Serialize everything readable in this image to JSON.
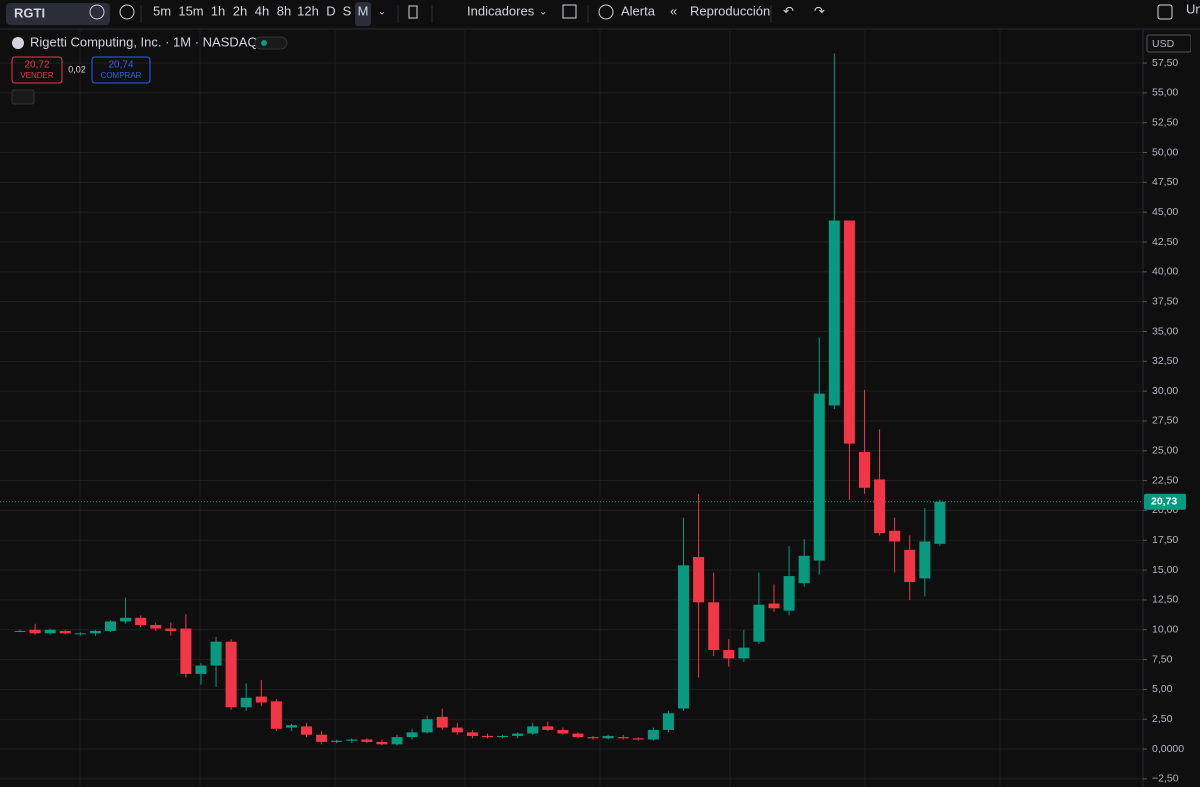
{
  "toolbar": {
    "symbol": "RGTI",
    "intervals": [
      "5m",
      "15m",
      "1h",
      "2h",
      "4h",
      "8h",
      "12h",
      "D",
      "S",
      "M"
    ],
    "indicators": "Indicadores",
    "alert": "Alerta",
    "replay": "Reproducción",
    "right_cut": "Un"
  },
  "legend": {
    "title": "Rigetti Computing, Inc. · 1M · NASDAQ",
    "sell_price": "20,72",
    "sell_label": "VENDER",
    "spread": "0,02",
    "buy_price": "20,74",
    "buy_label": "COMPRAR"
  },
  "currency": "USD",
  "chart_data": {
    "type": "candlestick",
    "up_color": "#089981",
    "down_color": "#f23645",
    "grid": true,
    "ylim": [
      -3.18,
      60.27
    ],
    "yticks": [
      {
        "value": -2.5,
        "label": "−2,50"
      },
      {
        "value": 0,
        "label": "0,0000"
      },
      {
        "value": 2.5,
        "label": "2,50"
      },
      {
        "value": 5,
        "label": "5,00"
      },
      {
        "value": 7.5,
        "label": "7,50"
      },
      {
        "value": 10,
        "label": "10,00"
      },
      {
        "value": 12.5,
        "label": "12,50"
      },
      {
        "value": 15,
        "label": "15,00"
      },
      {
        "value": 17.5,
        "label": "17,50"
      },
      {
        "value": 20,
        "label": "20,00"
      },
      {
        "value": 22.5,
        "label": "22,50"
      },
      {
        "value": 25,
        "label": "25,00"
      },
      {
        "value": 27.5,
        "label": "27,50"
      },
      {
        "value": 30,
        "label": "30,00"
      },
      {
        "value": 32.5,
        "label": "32,50"
      },
      {
        "value": 35,
        "label": "35,00"
      },
      {
        "value": 37.5,
        "label": "37,50"
      },
      {
        "value": 40,
        "label": "40,00"
      },
      {
        "value": 42.5,
        "label": "42,50"
      },
      {
        "value": 45,
        "label": "45,00"
      },
      {
        "value": 47.5,
        "label": "47,50"
      },
      {
        "value": 50,
        "label": "50,00"
      },
      {
        "value": 52.5,
        "label": "52,50"
      },
      {
        "value": 55,
        "label": "55,00"
      },
      {
        "value": 57.5,
        "label": "57,50"
      }
    ],
    "last_price": {
      "value": 20.73,
      "label": "20,73"
    },
    "open": [
      9.9,
      10,
      9.7,
      9.9,
      9.7,
      9.7,
      9.9,
      10.7,
      11,
      10.4,
      10.1,
      10.1,
      6.3,
      7,
      9,
      3.5,
      4.4,
      4,
      1.8,
      1.9,
      1.2,
      0.6,
      0.7,
      0.8,
      0.6,
      0.4,
      1,
      1.4,
      2.7,
      1.8,
      1.4,
      1.1,
      1,
      1.1,
      1.3,
      1.9,
      1.6,
      1.3,
      1,
      0.9,
      1,
      0.9,
      0.8,
      1.6,
      3.4,
      16.1,
      12.3,
      8.3,
      7.6,
      9,
      12.2,
      11.6,
      13.9,
      15.8,
      28.8,
      44.3,
      24.9,
      22.6,
      18.3,
      16.7,
      14.3,
      17.2
    ],
    "high": [
      10,
      10.5,
      10.1,
      10,
      9.8,
      10,
      10.8,
      12.7,
      11.2,
      10.6,
      10.6,
      11.3,
      7.2,
      9.4,
      9.2,
      5.5,
      5.8,
      4.2,
      2.1,
      2.2,
      1.5,
      0.8,
      0.9,
      0.9,
      0.8,
      1.2,
      1.7,
      2.8,
      3.4,
      2.2,
      1.6,
      1.3,
      1.2,
      1.4,
      2.2,
      2.3,
      1.8,
      1.4,
      1.1,
      1.2,
      1.2,
      1,
      1.8,
      3.2,
      19.4,
      21.4,
      14.8,
      9.2,
      10,
      14.8,
      13.8,
      17,
      17.6,
      34.5,
      58.3,
      44.3,
      30.1,
      26.8,
      19.4,
      17.9,
      20.2,
      20.9
    ],
    "low": [
      9.8,
      9.6,
      9.6,
      9.6,
      9.5,
      9.5,
      9.8,
      10.5,
      10.2,
      9.9,
      9.5,
      6,
      5.4,
      5.2,
      3.3,
      3.2,
      3.6,
      1.5,
      1.5,
      1,
      0.4,
      0.5,
      0.5,
      0.5,
      0.3,
      0.3,
      0.8,
      1.3,
      1.6,
      1.2,
      0.9,
      0.9,
      0.9,
      0.9,
      1.2,
      1.5,
      1.2,
      0.9,
      0.8,
      0.8,
      0.8,
      0.7,
      0.7,
      1.4,
      3.2,
      6,
      7.8,
      6.9,
      7.3,
      8.8,
      11.5,
      11.2,
      13.6,
      14.6,
      28.5,
      20.9,
      21.4,
      17.9,
      14.8,
      12.5,
      12.8,
      17
    ],
    "close": [
      9.9,
      9.7,
      10,
      9.7,
      9.7,
      9.9,
      10.7,
      11,
      10.4,
      10.1,
      9.9,
      6.3,
      7,
      9,
      3.5,
      4.3,
      3.9,
      1.7,
      2,
      1.2,
      0.6,
      0.7,
      0.8,
      0.6,
      0.4,
      1,
      1.4,
      2.5,
      1.8,
      1.4,
      1.1,
      1,
      1.1,
      1.3,
      1.9,
      1.6,
      1.3,
      1,
      0.9,
      1.1,
      0.9,
      0.8,
      1.6,
      3,
      15.4,
      12.3,
      8.3,
      7.6,
      8.5,
      12.1,
      11.8,
      14.5,
      16.2,
      29.8,
      44.3,
      25.6,
      21.9,
      18.1,
      17.4,
      14,
      17.4,
      20.73
    ]
  }
}
